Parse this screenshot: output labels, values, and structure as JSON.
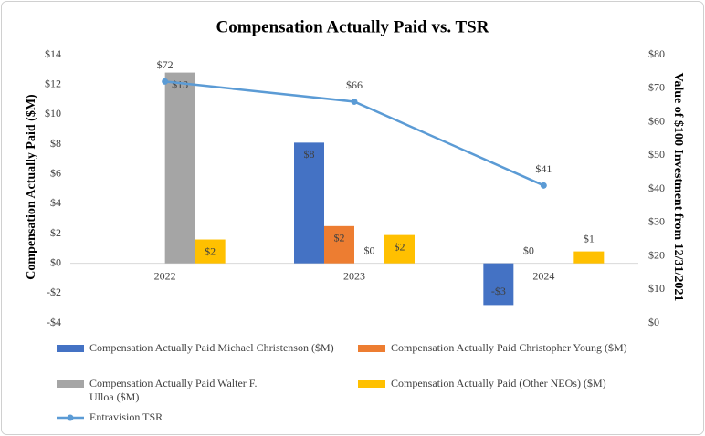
{
  "chart_data": {
    "type": "bar",
    "title": "Compensation Actually Paid vs. TSR",
    "y_label": "Compensation Actually Paid ($M)",
    "y2_label": "Value of $100 Investment from 12/31/2021",
    "categories": [
      "2022",
      "2023",
      "2024"
    ],
    "ylim": [
      -4,
      14
    ],
    "yticks": [
      {
        "value": -4,
        "label": "-$4"
      },
      {
        "value": -2,
        "label": "-$2"
      },
      {
        "value": 0,
        "label": "$0"
      },
      {
        "value": 2,
        "label": "$2"
      },
      {
        "value": 4,
        "label": "$4"
      },
      {
        "value": 6,
        "label": "$6"
      },
      {
        "value": 8,
        "label": "$8"
      },
      {
        "value": 10,
        "label": "$10"
      },
      {
        "value": 12,
        "label": "$12"
      },
      {
        "value": 14,
        "label": "$14"
      }
    ],
    "y2lim": [
      0,
      80
    ],
    "y2ticks": [
      {
        "value": 0,
        "label": "$0"
      },
      {
        "value": 10,
        "label": "$10"
      },
      {
        "value": 20,
        "label": "$20"
      },
      {
        "value": 30,
        "label": "$30"
      },
      {
        "value": 40,
        "label": "$40"
      },
      {
        "value": 50,
        "label": "$50"
      },
      {
        "value": 60,
        "label": "$60"
      },
      {
        "value": 70,
        "label": "$70"
      },
      {
        "value": 80,
        "label": "$80"
      }
    ],
    "series": [
      {
        "name": "Compensation Actually Paid Michael Christenson ($M)",
        "color": "#4472c4",
        "type": "bar",
        "values": [
          null,
          8.1,
          -2.8
        ],
        "value_labels": [
          null,
          "$8",
          "-$3"
        ]
      },
      {
        "name": "Compensation Actually Paid Christopher Young ($M)",
        "color": "#ed7d31",
        "type": "bar",
        "values": [
          null,
          2.5,
          0
        ],
        "value_labels": [
          null,
          "$2",
          "$0"
        ]
      },
      {
        "name": "Compensation Actually Paid Walter F. Ulloa ($M)",
        "color": "#a5a5a5",
        "type": "bar",
        "values": [
          12.8,
          0,
          null
        ],
        "value_labels": [
          "$13",
          "$0",
          null
        ]
      },
      {
        "name": "Compensation Actually Paid (Other NEOs) ($M)",
        "color": "#ffc000",
        "type": "bar",
        "values": [
          1.6,
          1.9,
          0.8
        ],
        "value_labels": [
          "$2",
          "$2",
          "$1"
        ]
      },
      {
        "name": "Entravision TSR",
        "color": "#5b9bd5",
        "type": "line",
        "axis": "y2",
        "values": [
          72,
          66,
          41
        ],
        "value_labels": [
          "$72",
          "$66",
          "$41"
        ]
      }
    ]
  }
}
